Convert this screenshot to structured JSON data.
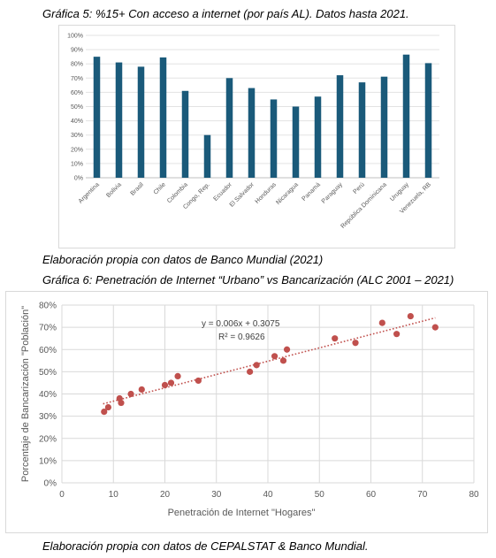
{
  "captions": {
    "chart1_title": "Gráfica 5: %15+ Con acceso a internet (por país AL). Datos hasta 2021.",
    "chart1_source": "Elaboración propia con datos de Banco Mundial (2021)",
    "chart2_title": "Gráfica 6: Penetración de Internet “Urbano” vs Bancarización (ALC 2001 – 2021)",
    "chart2_source": "Elaboración propia con datos de CEPALSTAT & Banco Mundial."
  },
  "chart_data": [
    {
      "type": "bar",
      "categories": [
        "Argentina",
        "Bolivia",
        "Brasil",
        "Chile",
        "Colombia",
        "Congo, Rep.",
        "Ecuador",
        "El Salvador",
        "Honduras",
        "Nicaragua",
        "Panamá",
        "Paraguay",
        "Perú",
        "República Dominicana",
        "Uruguay",
        "Venezuela, RB"
      ],
      "values": [
        85,
        81,
        78,
        84.5,
        61,
        30,
        70,
        63,
        55,
        50,
        57,
        72,
        67,
        71,
        86.5,
        80.5
      ],
      "ylim": [
        0,
        100
      ],
      "yticks": [
        "0%",
        "10%",
        "20%",
        "30%",
        "40%",
        "50%",
        "60%",
        "70%",
        "80%",
        "90%",
        "100%"
      ],
      "grid": true,
      "bar_color": "#1a5a7a"
    },
    {
      "type": "scatter",
      "xlabel": "Penetración de Internet \"Hogares\"",
      "ylabel": "Porcentaje de Bancarización \"Población\"",
      "xlim": [
        0,
        80
      ],
      "ylim": [
        0,
        0.8
      ],
      "xticks": [
        "0",
        "10",
        "20",
        "30",
        "40",
        "50",
        "60",
        "70",
        "80"
      ],
      "yticks": [
        "0%",
        "10%",
        "20%",
        "30%",
        "40%",
        "50%",
        "60%",
        "70%",
        "80%"
      ],
      "grid": true,
      "point_color": "#c0504d",
      "points": [
        [
          8.2,
          0.32
        ],
        [
          9.0,
          0.34
        ],
        [
          11.2,
          0.38
        ],
        [
          11.5,
          0.36
        ],
        [
          13.4,
          0.4
        ],
        [
          15.5,
          0.42
        ],
        [
          20.0,
          0.44
        ],
        [
          21.2,
          0.45
        ],
        [
          22.5,
          0.48
        ],
        [
          26.5,
          0.46
        ],
        [
          36.5,
          0.5
        ],
        [
          37.8,
          0.53
        ],
        [
          41.3,
          0.57
        ],
        [
          43.0,
          0.55
        ],
        [
          43.7,
          0.6
        ],
        [
          53.0,
          0.65
        ],
        [
          57.0,
          0.63
        ],
        [
          62.2,
          0.72
        ],
        [
          65.0,
          0.67
        ],
        [
          67.7,
          0.75
        ],
        [
          72.5,
          0.7
        ]
      ],
      "trendline": {
        "slope": 0.006,
        "intercept": 0.3075,
        "x_range": [
          8,
          72.5
        ],
        "equation": "y = 0.006x + 0.3075",
        "r2": "R² = 0.9626"
      }
    }
  ]
}
